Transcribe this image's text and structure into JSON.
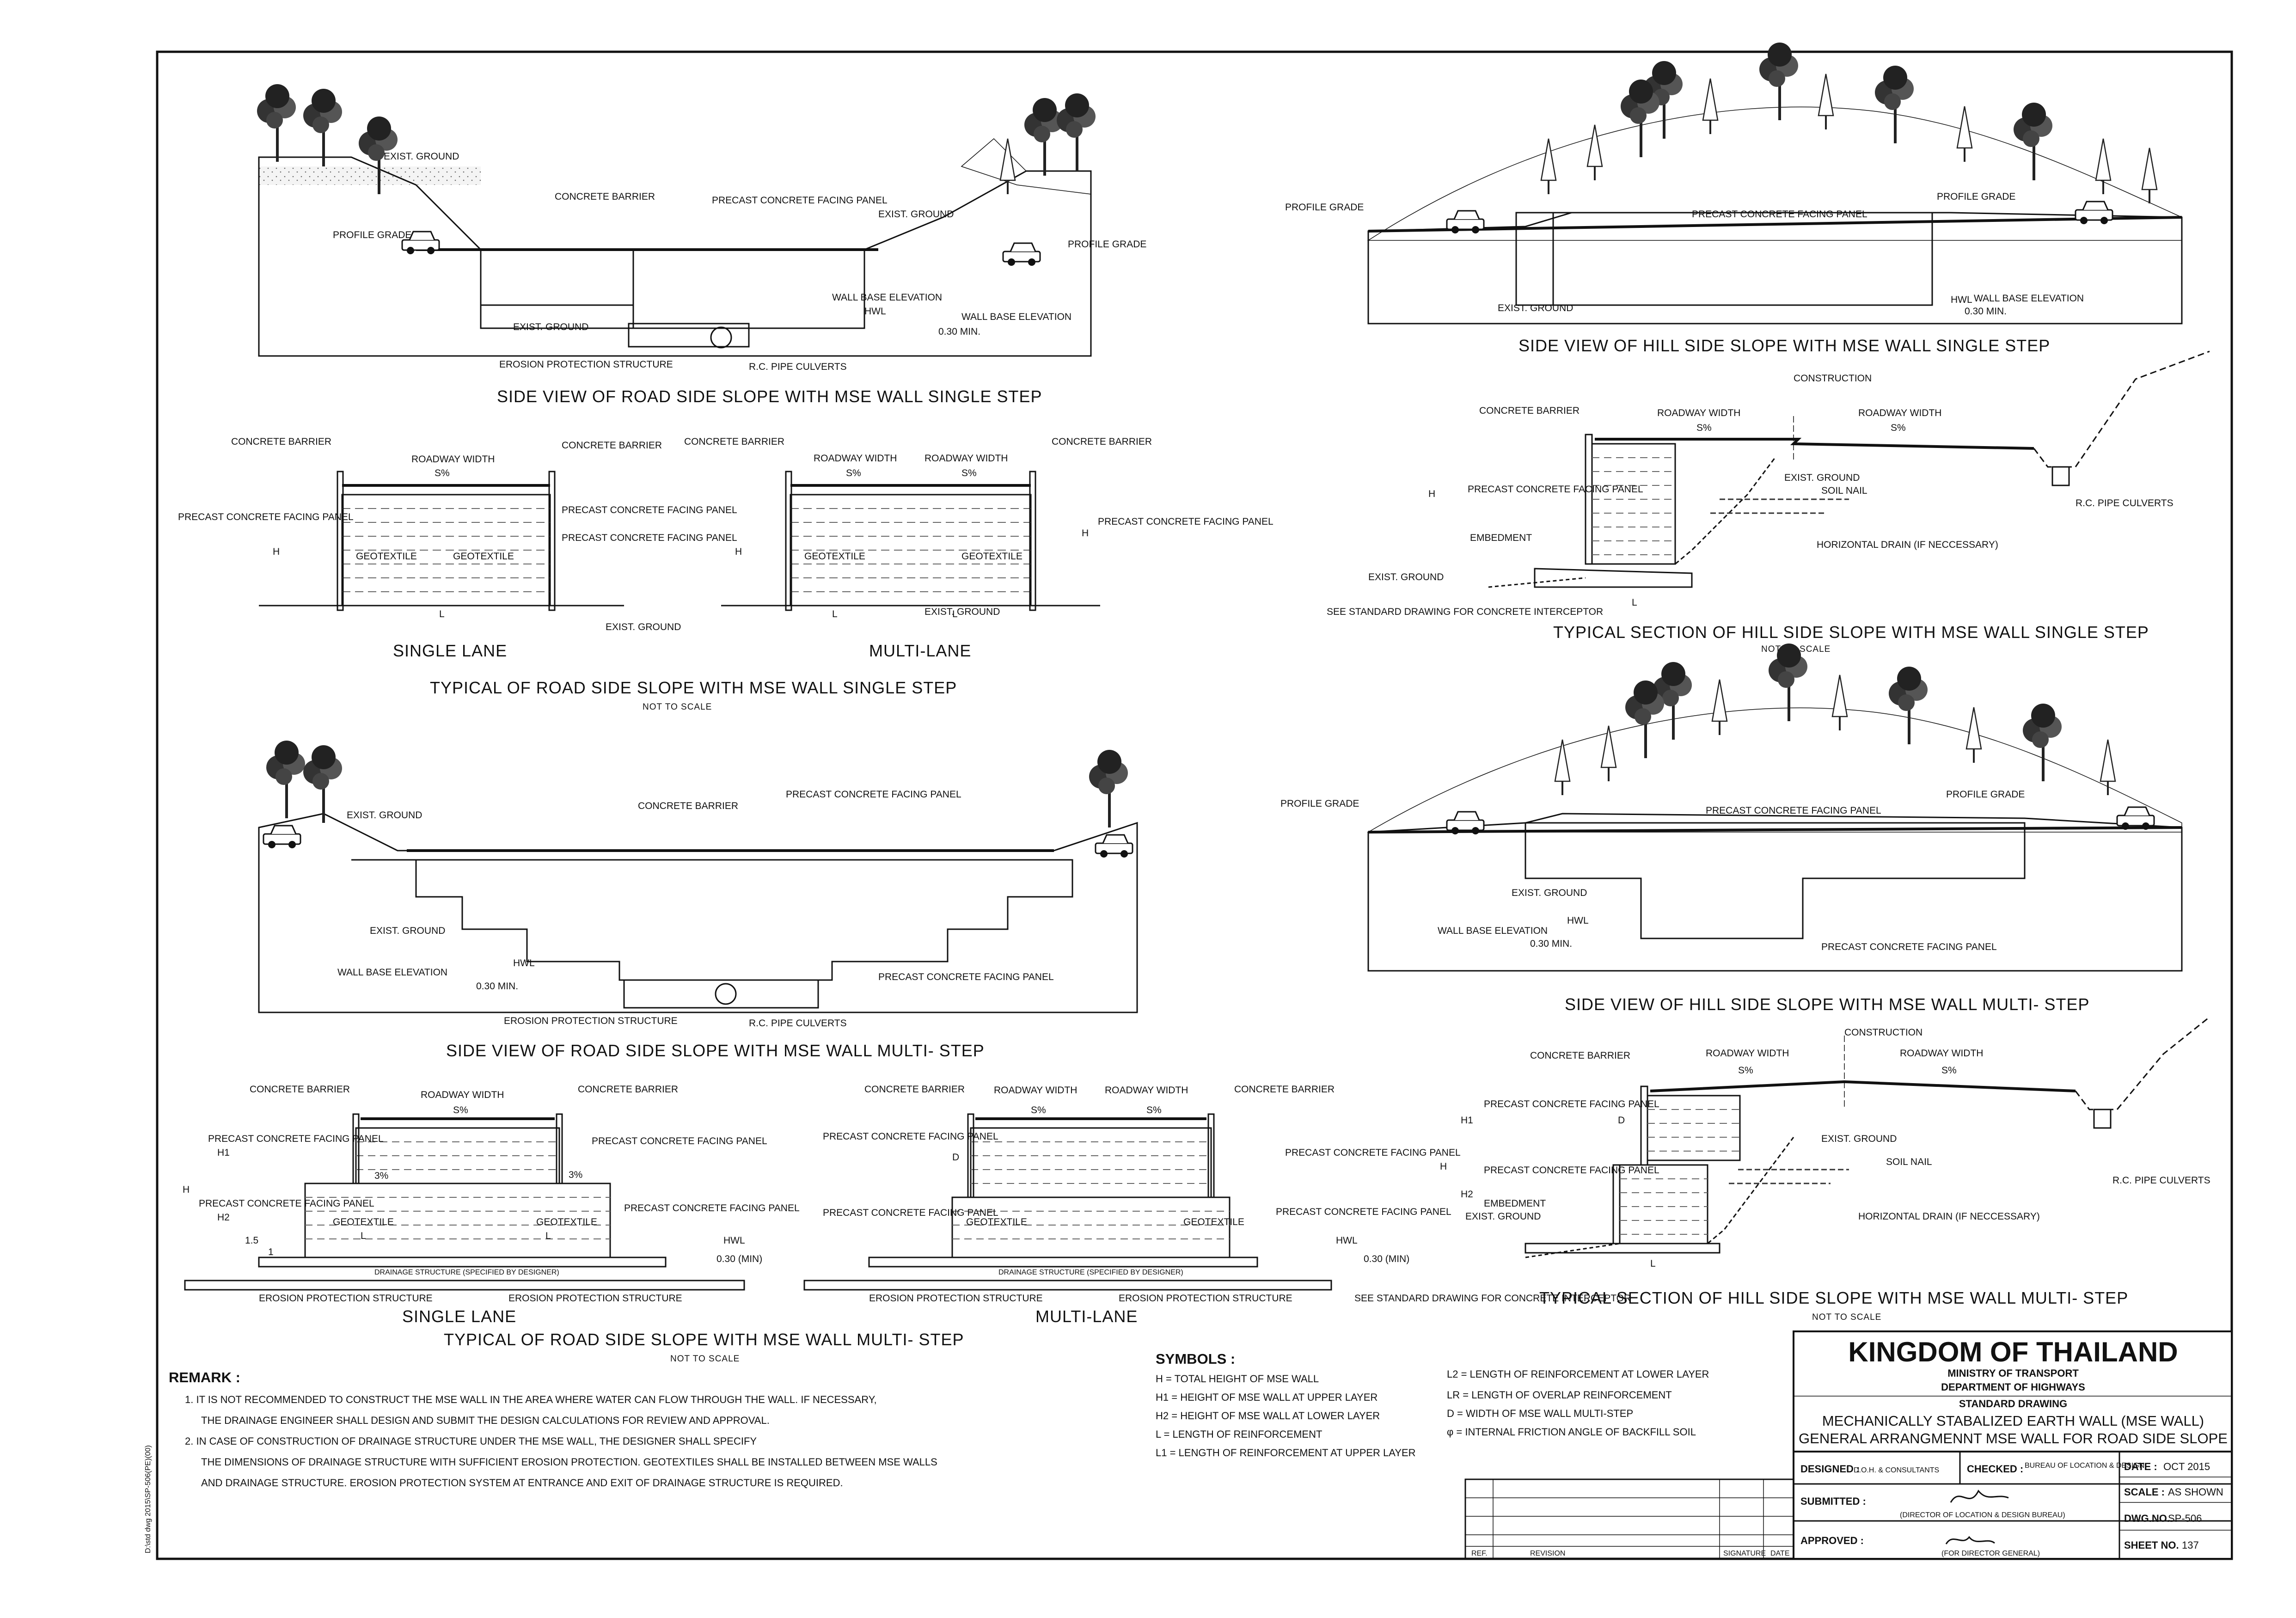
{
  "views": {
    "road_single": {
      "title": "SIDE VIEW OF ROAD SIDE SLOPE WITH MSE WALL SINGLE STEP",
      "labels": [
        "EXIST. GROUND",
        "CONCRETE BARRIER",
        "PRECAST CONCRETE FACING PANEL",
        "EXIST. GROUND",
        "PROFILE GRADE",
        "PROFILE GRADE",
        "WALL BASE ELEVATION",
        "HWL",
        "WALL BASE ELEVATION",
        "0.30 MIN.",
        "EXIST. GROUND",
        "EROSION PROTECTION STRUCTURE",
        "R.C. PIPE CULVERTS"
      ]
    },
    "hill_single": {
      "title": "SIDE VIEW OF HILL SIDE SLOPE WITH MSE WALL SINGLE STEP",
      "labels": [
        "PROFILE GRADE",
        "PRECAST CONCRETE FACING PANEL",
        "PROFILE GRADE",
        "EXIST. GROUND",
        "HWL",
        "WALL BASE ELEVATION",
        "0.30 MIN."
      ]
    },
    "typ_road_single": {
      "title": "TYPICAL OF ROAD SIDE SLOPE WITH MSE WALL SINGLE STEP",
      "subtitle": "NOT TO SCALE",
      "left_caption": "SINGLE LANE",
      "right_caption": "MULTI-LANE",
      "labels": [
        "CONCRETE BARRIER",
        "ROADWAY WIDTH",
        "S%",
        "CONCRETE BARRIER",
        "PRECAST CONCRETE FACING PANEL",
        "H",
        "GEOTEXTILE",
        "GEOTEXTILE",
        "L",
        "EXIST. GROUND",
        "PRECAST CONCRETE FACING PANEL",
        "PRECAST CONCRETE FACING PANEL",
        "CONCRETE BARRIER",
        "ROADWAY WIDTH",
        "ROADWAY WIDTH",
        "S%",
        "S%",
        "CONCRETE BARRIER",
        "H",
        "GEOTEXTILE",
        "GEOTEXTILE",
        "H",
        "PRECAST CONCRETE FACING PANEL",
        "L",
        "L",
        "EXIST. GROUND"
      ]
    },
    "typ_hill_single": {
      "title": "TYPICAL SECTION OF HILL SIDE SLOPE WITH MSE WALL SINGLE STEP",
      "subtitle": "NOT TO SCALE",
      "labels": [
        "CONSTRUCTION",
        "CONCRETE BARRIER",
        "ROADWAY WIDTH",
        "ROADWAY WIDTH",
        "S%",
        "S%",
        "H",
        "PRECAST CONCRETE FACING PANEL",
        "EXIST. GROUND",
        "SOIL NAIL",
        "EMBEDMENT",
        "HORIZONTAL DRAIN (IF NECCESSARY)",
        "EXIST. GROUND",
        "L",
        "SEE STANDARD DRAWING FOR CONCRETE INTERCEPTOR",
        "R.C. PIPE CULVERTS"
      ]
    },
    "road_multi": {
      "title": "SIDE VIEW OF ROAD SIDE SLOPE WITH MSE WALL MULTI- STEP",
      "labels": [
        "EXIST. GROUND",
        "CONCRETE BARRIER",
        "PRECAST CONCRETE FACING PANEL",
        "EXIST. GROUND",
        "WALL BASE ELEVATION",
        "HWL",
        "0.30 MIN.",
        "PRECAST CONCRETE FACING PANEL",
        "EROSION PROTECTION STRUCTURE",
        "R.C. PIPE CULVERTS"
      ]
    },
    "hill_multi": {
      "title": "SIDE VIEW OF HILL SIDE SLOPE WITH MSE WALL MULTI- STEP",
      "labels": [
        "PROFILE GRADE",
        "PRECAST CONCRETE FACING PANEL",
        "PROFILE GRADE",
        "EXIST. GROUND",
        "HWL",
        "WALL BASE ELEVATION",
        "0.30 MIN.",
        "PRECAST CONCRETE FACING PANEL"
      ]
    },
    "typ_road_multi": {
      "title": "TYPICAL OF ROAD SIDE SLOPE WITH MSE WALL MULTI- STEP",
      "subtitle": "NOT TO SCALE",
      "left_caption": "SINGLE LANE",
      "right_caption": "MULTI-LANE",
      "labels": [
        "CONCRETE BARRIER",
        "ROADWAY WIDTH",
        "CONCRETE BARRIER",
        "S%",
        "H",
        "H1",
        "H2",
        "PRECAST CONCRETE FACING PANEL",
        "PRECAST CONCRETE FACING PANEL",
        "PRECAST CONCRETE FACING PANEL",
        "PRECAST CONCRETE FACING PANEL",
        "3%",
        "3%",
        "GEOTEXTILE",
        "GEOTEXTILE",
        "L",
        "L",
        "1.5",
        "1",
        "DRAINAGE STRUCTURE (SPECIFIED BY DESIGNER)",
        "EROSION PROTECTION STRUCTURE",
        "EROSION PROTECTION STRUCTURE",
        "HWL",
        "0.30 (MIN)",
        "CONCRETE BARRIER",
        "ROADWAY WIDTH",
        "ROADWAY WIDTH",
        "CONCRETE BARRIER",
        "S%",
        "S%",
        "PRECAST CONCRETE FACING PANEL",
        "PRECAST CONCRETE FACING PANEL",
        "PRECAST CONCRETE FACING PANEL",
        "PRECAST CONCRETE FACING PANEL",
        "D",
        "GEOTEXTILE",
        "GEOTEXTILE",
        "DRAINAGE STRUCTURE (SPECIFIED BY DESIGNER)",
        "EROSION PROTECTION STRUCTURE",
        "EROSION PROTECTION STRUCTURE",
        "HWL",
        "0.30 (MIN)"
      ]
    },
    "typ_hill_multi": {
      "title": "TYPICAL SECTION OF HILL SIDE SLOPE WITH MSE WALL MULTI- STEP",
      "subtitle": "NOT TO SCALE",
      "labels": [
        "CONSTRUCTION",
        "CONCRETE BARRIER",
        "ROADWAY WIDTH",
        "ROADWAY WIDTH",
        "S%",
        "S%",
        "H",
        "H1",
        "H2",
        "D",
        "PRECAST CONCRETE FACING PANEL",
        "PRECAST CONCRETE FACING PANEL",
        "EXIST. GROUND",
        "SOIL NAIL",
        "EMBEDMENT",
        "EXIST. GROUND",
        "HORIZONTAL DRAIN (IF NECCESSARY)",
        "L",
        "SEE STANDARD DRAWING FOR CONCRETE INTERCEPTOR",
        "R.C. PIPE CULVERTS"
      ]
    }
  },
  "remark": {
    "heading": "REMARK :",
    "lines": [
      "1. IT IS NOT RECOMMENDED TO CONSTRUCT THE MSE WALL IN THE AREA WHERE WATER CAN FLOW THROUGH THE WALL. IF NECESSARY,",
      "THE DRAINAGE ENGINEER SHALL DESIGN AND SUBMIT THE DESIGN CALCULATIONS FOR REVIEW AND APPROVAL.",
      "2. IN CASE OF CONSTRUCTION OF DRAINAGE STRUCTURE UNDER THE MSE WALL, THE DESIGNER SHALL SPECIFY",
      "THE DIMENSIONS OF DRAINAGE STRUCTURE WITH SUFFICIENT EROSION PROTECTION. GEOTEXTILES SHALL BE INSTALLED BETWEEN MSE WALLS",
      "AND DRAINAGE STRUCTURE. EROSION PROTECTION SYSTEM AT ENTRANCE AND EXIT OF DRAINAGE STRUCTURE IS REQUIRED."
    ]
  },
  "symbols": {
    "heading": "SYMBOLS :",
    "left": [
      "H = TOTAL HEIGHT OF MSE WALL",
      "H1 = HEIGHT OF MSE WALL AT UPPER LAYER",
      "H2 = HEIGHT OF MSE WALL AT LOWER LAYER",
      "L = LENGTH OF REINFORCEMENT",
      "L1 = LENGTH OF REINFORCEMENT AT UPPER LAYER"
    ],
    "right": [
      "L2 = LENGTH OF REINFORCEMENT AT LOWER LAYER",
      "LR = LENGTH OF OVERLAP REINFORCEMENT",
      "D = WIDTH OF MSE WALL MULTI-STEP",
      "φ = INTERNAL FRICTION ANGLE OF BACKFILL SOIL"
    ]
  },
  "revision_table": {
    "col_ref": "REF.",
    "col_revision": "REVISION",
    "col_signature": "SIGNATURE",
    "col_date": "DATE"
  },
  "title_block": {
    "country": "KINGDOM OF THAILAND",
    "ministry": "MINISTRY OF TRANSPORT",
    "department": "DEPARTMENT OF HIGHWAYS",
    "standard": "STANDARD DRAWING",
    "title1": "MECHANICALLY STABALIZED EARTH WALL (MSE WALL)",
    "title2": "GENERAL ARRANGMENNT MSE WALL FOR ROAD SIDE SLOPE",
    "designed_label": "DESIGNED :",
    "designed_value": "D.O.H. & CONSULTANTS",
    "checked_label": "CHECKED :",
    "checked_value": "BUREAU OF LOCATION & DESIGN",
    "date_label": "DATE :",
    "date_value": "OCT 2015",
    "submitted_label": "SUBMITTED :",
    "submitted_note": "(DIRECTOR OF LOCATION & DESIGN BUREAU)",
    "scale_label": "SCALE :",
    "scale_value": "AS SHOWN",
    "dwg_label": "DWG.NO.",
    "dwg_value": "SP-506",
    "approved_label": "APPROVED :",
    "approved_note": "(FOR DIRECTOR GENERAL)",
    "sheet_label": "SHEET NO.",
    "sheet_value": "137"
  },
  "margin_note": "D:\\std dwg 2015\\SP-506(PE)(00)"
}
